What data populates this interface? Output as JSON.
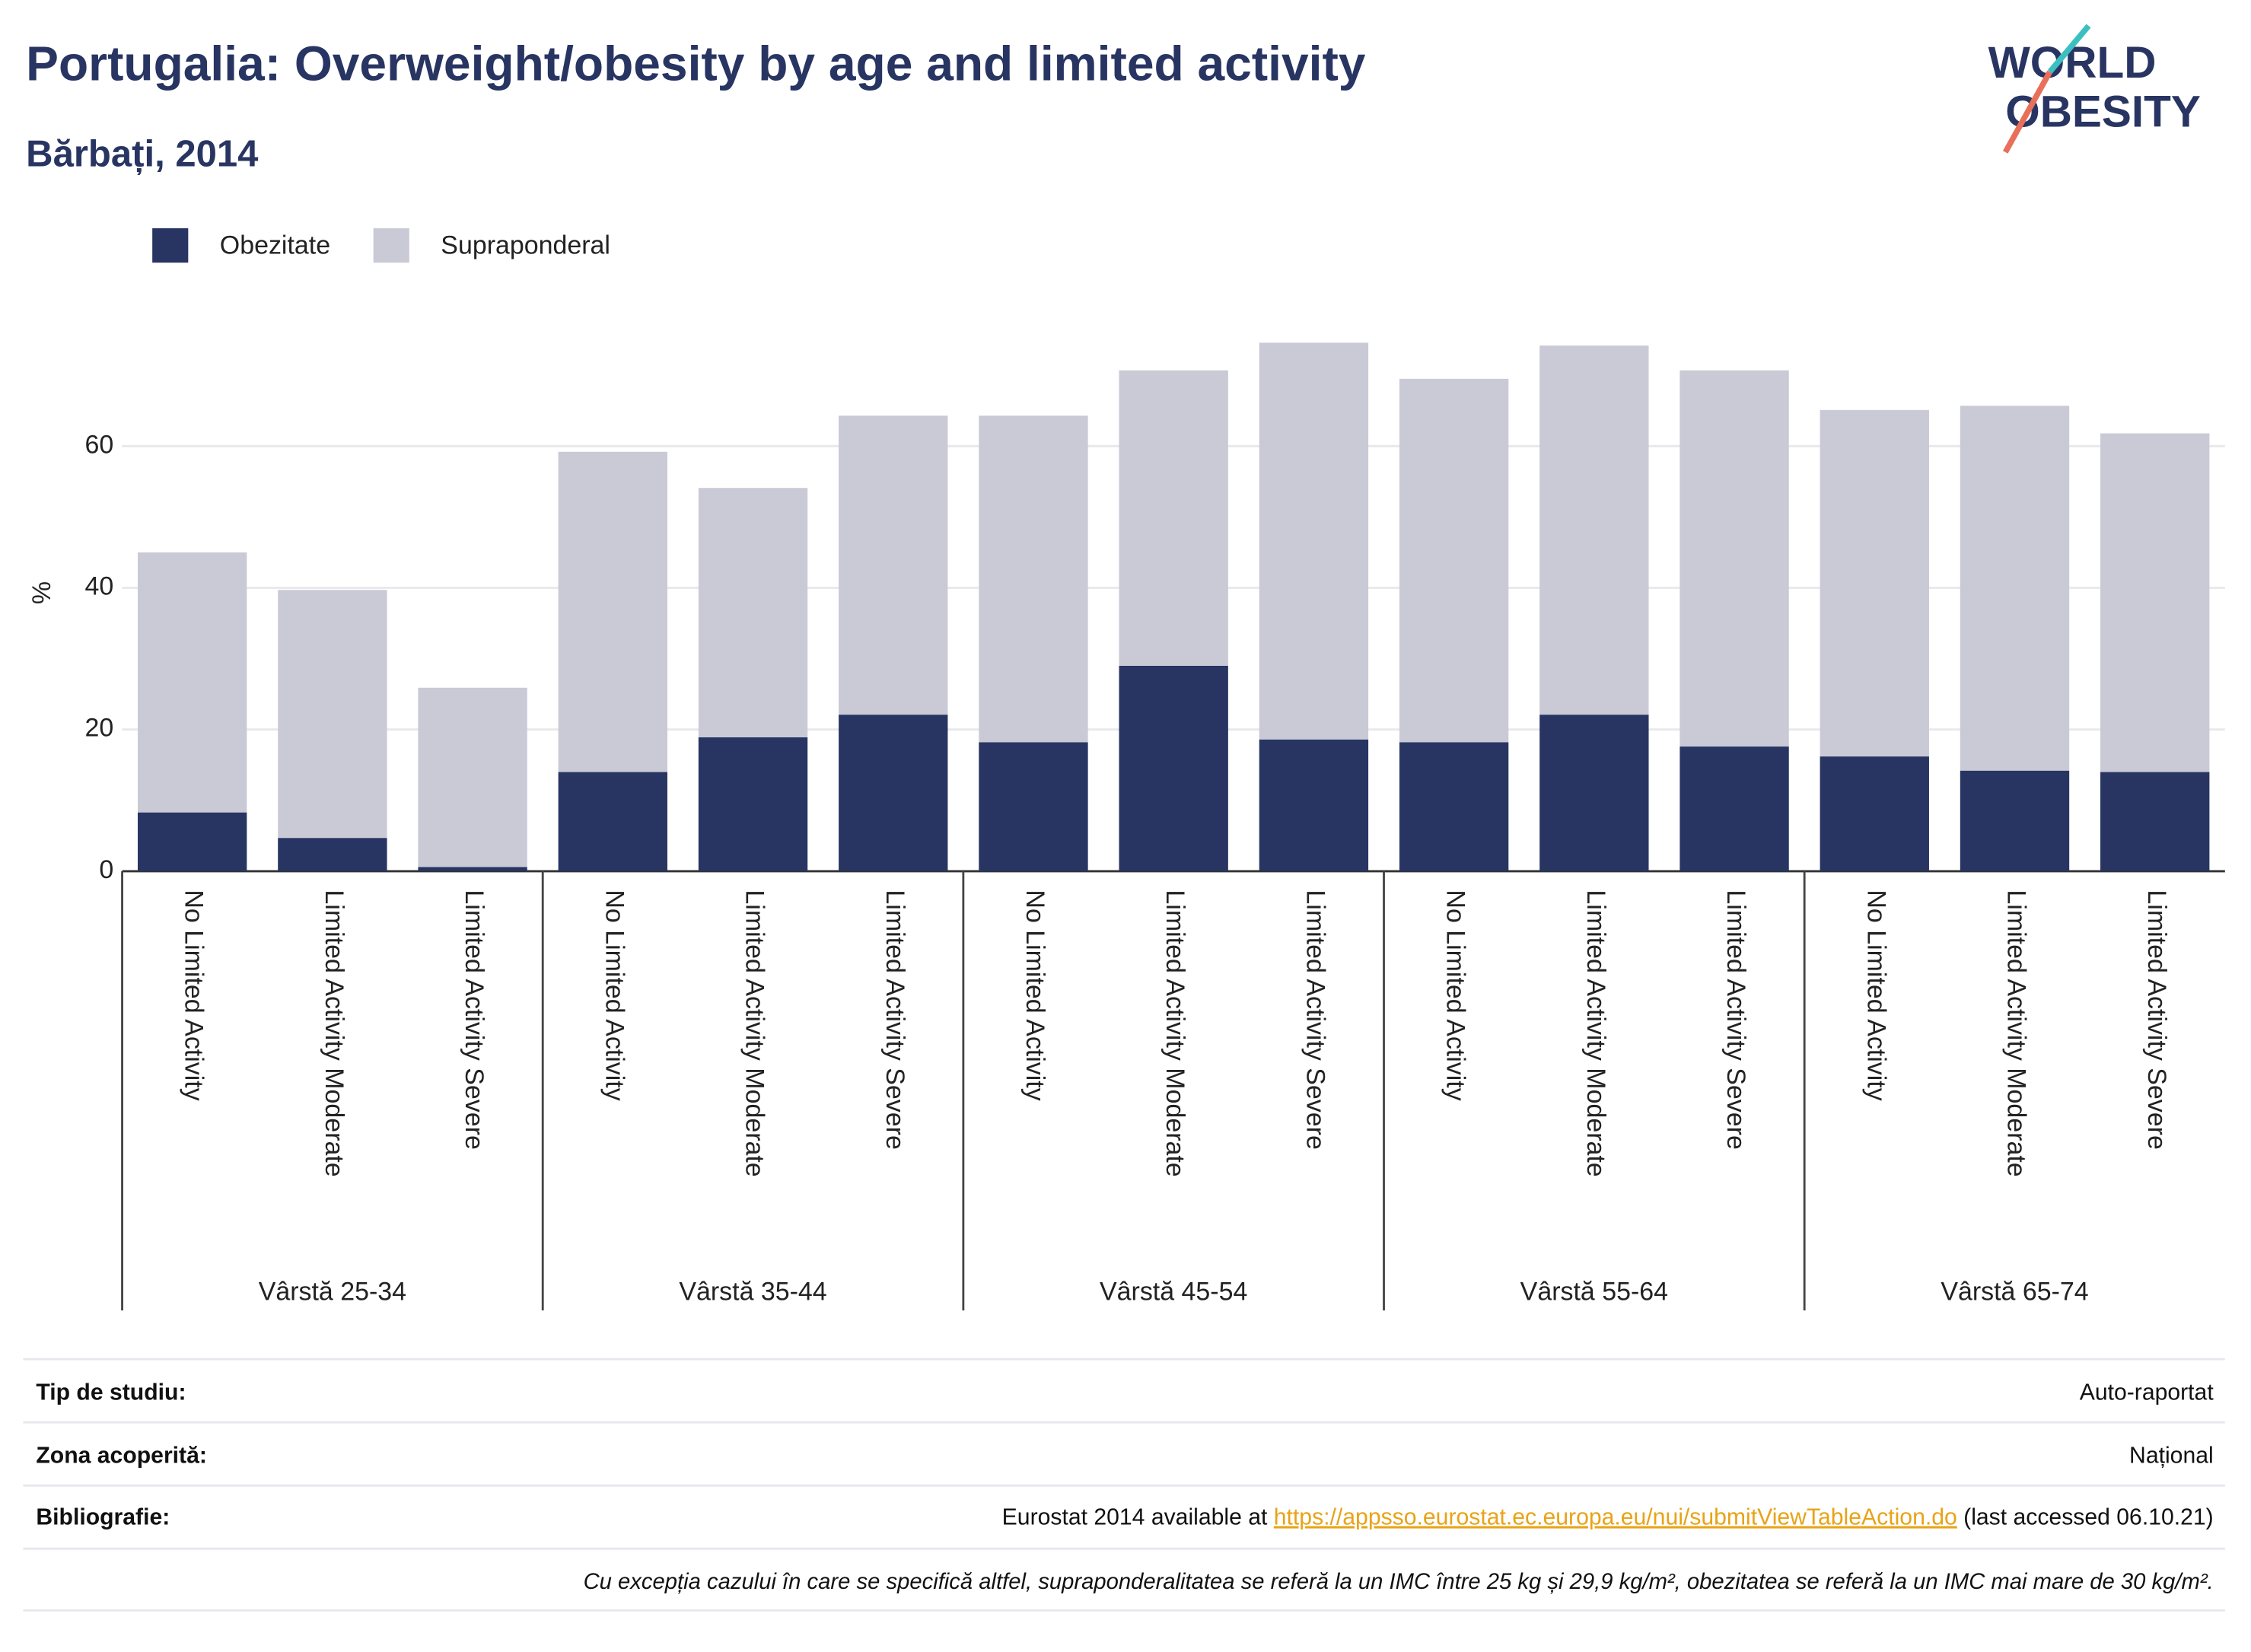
{
  "chart_data": {
    "type": "stacked_bar",
    "title": "Portugalia: Overweight/obesity by age and limited activity",
    "subtitle": "Bărbați, 2014",
    "y_label": "%",
    "categories": [
      "No Limited Activity",
      "Limited Activity Moderate",
      "Limited Activity Severe",
      "No Limited Activity",
      "Limited Activity Moderate",
      "Limited Activity Severe",
      "No Limited Activity",
      "Limited Activity Moderate",
      "Limited Activity Severe",
      "No Limited Activity",
      "Limited Activity Moderate",
      "Limited Activity Severe",
      "No Limited Activity",
      "Limited Activity Moderate",
      "Limited Activity Severe"
    ],
    "groups": [
      "Vârstă 25-34",
      "Vârstă 35-44",
      "Vârstă 45-54",
      "Vârstă 55-64",
      "Vârstă 65-74"
    ],
    "series": [
      {
        "name": "Obezitate",
        "color": "#283562",
        "values": [
          8.3,
          4.7,
          0.6,
          14.0,
          18.9,
          22.1,
          18.2,
          29.0,
          18.6,
          18.2,
          22.1,
          17.6,
          16.2,
          14.2,
          14.0
        ]
      },
      {
        "name": "Supraponderal",
        "color": "#c9cad6",
        "values": [
          36.7,
          35.0,
          25.3,
          45.2,
          35.2,
          42.2,
          46.1,
          41.7,
          56.0,
          51.3,
          52.1,
          53.1,
          48.9,
          51.5,
          47.8
        ]
      }
    ],
    "ylim": [
      0,
      78
    ],
    "yticks": [
      0,
      20,
      40,
      60
    ],
    "grid": true
  },
  "logo": {
    "line1": "WORLD",
    "line2": "OBESITY"
  },
  "footer": {
    "rows": [
      {
        "label": "Tip de studiu:",
        "value": "Auto-raportat"
      },
      {
        "label": "Zona acoperită:",
        "value": "Național"
      },
      {
        "label": "Bibliografie:",
        "value": {
          "before": "Eurostat 2014 available at ",
          "link": "https://appsso.eurostat.ec.europa.eu/nui/submitViewTableAction.do",
          "after": " (last accessed 06.10.21)"
        }
      }
    ],
    "note": "Cu excepția cazului în care se specifică altfel, supraponderalitatea se referă la un IMC între 25 kg și 29,9 kg/m², obezitatea se referă la un IMC mai mare de 30 kg/m²."
  }
}
